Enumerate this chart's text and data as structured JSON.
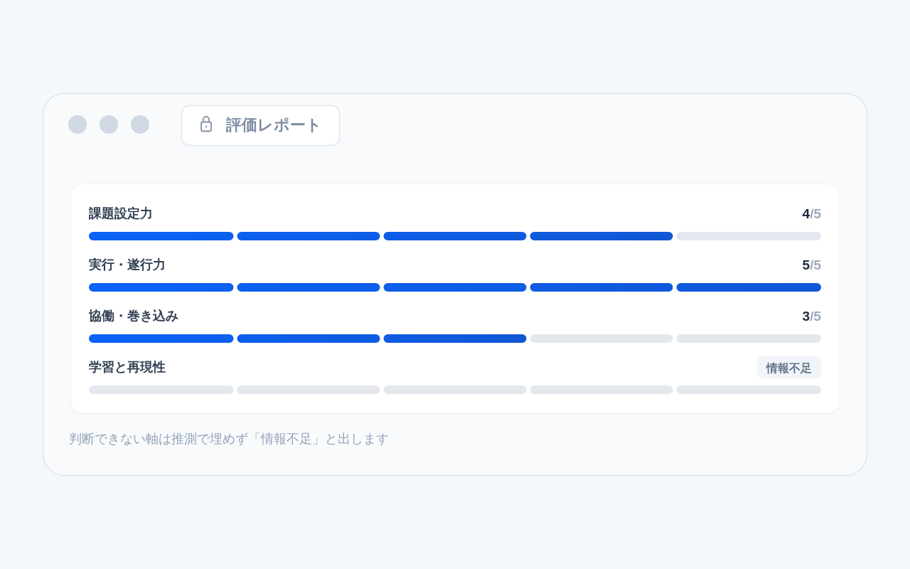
{
  "chart_data": {
    "type": "bar",
    "orientation": "horizontal",
    "title": "評価レポート",
    "categories": [
      "課題設定力",
      "実行・遂行力",
      "協働・巻き込み",
      "学習と再現性"
    ],
    "values": [
      0.8,
      1,
      0.6,
      null
    ],
    "value_labels": [
      "4/5",
      "5/5",
      "3/5",
      "情報不足"
    ],
    "xlim": [
      0,
      1
    ],
    "color": "#0b63f6",
    "tick_labels": "y",
    "annotations": [
      "判断できない軸は推測で埋めず「情報不足」と出します"
    ]
  }
}
